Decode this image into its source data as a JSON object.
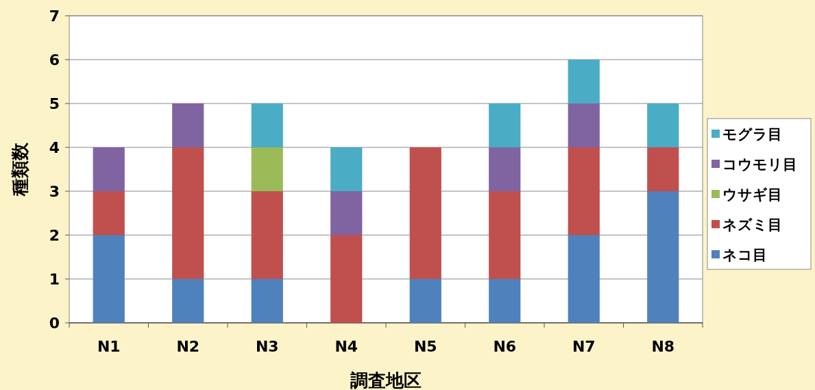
{
  "chart_data": {
    "type": "bar",
    "stacked": true,
    "xlabel": "調査地区",
    "ylabel": "種類数",
    "categories": [
      "N1",
      "N2",
      "N3",
      "N4",
      "N5",
      "N6",
      "N7",
      "N8"
    ],
    "ylim": [
      0,
      7
    ],
    "yticks": [
      0,
      1,
      2,
      3,
      4,
      5,
      6,
      7
    ],
    "grid": "y",
    "legend": "right",
    "series": [
      {
        "name": "ネコ目",
        "color": "#4f81bd",
        "values": [
          2,
          1,
          1,
          0,
          1,
          1,
          2,
          3
        ]
      },
      {
        "name": "ネズミ目",
        "color": "#c0504d",
        "values": [
          1,
          3,
          2,
          2,
          3,
          2,
          2,
          1
        ]
      },
      {
        "name": "ウサギ目",
        "color": "#9bbb59",
        "values": [
          0,
          0,
          1,
          0,
          0,
          0,
          0,
          0
        ]
      },
      {
        "name": "コウモリ目",
        "color": "#8064a2",
        "values": [
          1,
          1,
          0,
          1,
          0,
          1,
          1,
          0
        ]
      },
      {
        "name": "モグラ目",
        "color": "#4bacc6",
        "values": [
          0,
          0,
          1,
          1,
          0,
          1,
          1,
          1
        ]
      }
    ]
  }
}
